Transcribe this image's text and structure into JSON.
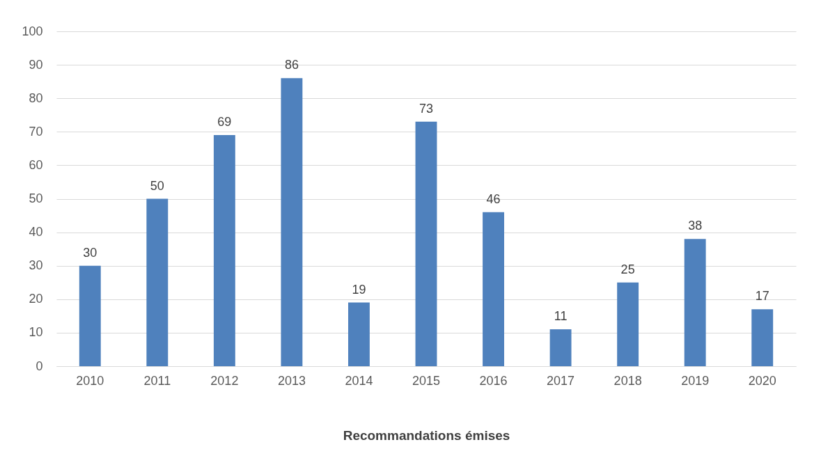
{
  "chart_data": {
    "type": "bar",
    "xlabel": "Recommandations émises",
    "categories": [
      "2010",
      "2011",
      "2012",
      "2013",
      "2014",
      "2015",
      "2016",
      "2017",
      "2018",
      "2019",
      "2020"
    ],
    "values": [
      30,
      50,
      69,
      86,
      19,
      73,
      46,
      11,
      25,
      38,
      17
    ],
    "color": "#4f81bd",
    "ylim": [
      0,
      100
    ],
    "yticks": [
      0,
      10,
      20,
      30,
      40,
      50,
      60,
      70,
      80,
      90,
      100
    ],
    "grid": "y",
    "data_labels": true
  }
}
